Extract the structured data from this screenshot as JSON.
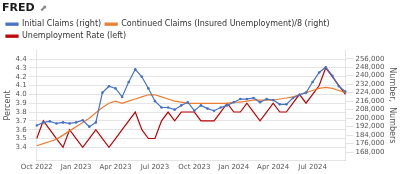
{
  "chart_data": {
    "type": "line",
    "title": "FRED",
    "annotations": [
      "⬈"
    ],
    "y_label": "Percent",
    "y2_label": "Number,  Numbers",
    "categories": [
      "Oct 2022",
      null,
      null,
      null,
      null,
      null,
      "Jan 2023",
      null,
      null,
      null,
      null,
      null,
      "Apr 2023",
      null,
      null,
      null,
      null,
      null,
      "Jul 2023",
      null,
      null,
      null,
      null,
      null,
      "Oct 2023",
      null,
      null,
      null,
      null,
      null,
      "Jan 2024",
      null,
      null,
      null,
      null,
      null,
      "Apr 2024",
      null,
      null,
      null,
      null,
      null,
      "Jul 2024",
      null,
      null,
      null,
      null,
      null
    ],
    "series": [
      {
        "name": "Initial Claims (right)",
        "color": "#4472c4",
        "axis": "y2",
        "marker": "circle",
        "values": [
          193000,
          196000,
          197000,
          195000,
          196000,
          195000,
          196000,
          198000,
          192000,
          196000,
          224000,
          230000,
          228000,
          220000,
          234000,
          246000,
          239000,
          228000,
          216000,
          210000,
          210000,
          208000,
          212000,
          215000,
          207000,
          212000,
          209000,
          207000,
          210000,
          212000,
          215000,
          218000,
          218000,
          219000,
          215000,
          218000,
          217000,
          213000,
          213000,
          219000,
          222000,
          224000,
          234000,
          243000,
          248000,
          240000,
          230000,
          225000
        ]
      },
      {
        "name": "Continued Claims (Insured Unemployment)/8 (right)",
        "color": "#ed7d31",
        "axis": "y2",
        "values": [
          174000,
          176000,
          178000,
          180000,
          184000,
          188000,
          192000,
          196000,
          200000,
          205000,
          210000,
          214000,
          216000,
          214000,
          216000,
          218000,
          220000,
          222000,
          222000,
          220000,
          218000,
          216000,
          215000,
          214000,
          214000,
          214000,
          214000,
          214000,
          214000,
          214000,
          215000,
          215000,
          216000,
          217000,
          217000,
          217000,
          217000,
          218000,
          219000,
          220000,
          222000,
          224000,
          226000,
          228000,
          229000,
          228000,
          226000,
          224000
        ]
      },
      {
        "name": "Unemployment Rate (left)",
        "color": "#be0000",
        "axis": "y",
        "values": [
          3.5,
          3.7,
          3.6,
          3.5,
          3.4,
          3.6,
          3.5,
          3.4,
          3.5,
          3.6,
          3.5,
          3.4,
          3.5,
          3.6,
          3.7,
          3.8,
          3.6,
          3.5,
          3.5,
          3.7,
          3.8,
          3.7,
          3.8,
          3.8,
          3.8,
          3.7,
          3.7,
          3.7,
          3.8,
          3.9,
          3.8,
          3.8,
          3.9,
          3.8,
          3.7,
          3.8,
          3.9,
          3.8,
          3.8,
          3.9,
          4.0,
          3.9,
          4.0,
          4.1,
          4.3,
          4.2,
          4.1,
          4.0
        ]
      }
    ],
    "ylim": [
      3.25,
      4.5
    ],
    "yticks": [
      3.4,
      3.5,
      3.6,
      3.7,
      3.8,
      3.9,
      {
        "value": 4.0,
        "label": "4.0"
      },
      4.1,
      4.2,
      4.3,
      4.4
    ],
    "y2lim": [
      160000,
      264000
    ],
    "y2ticks": [
      {
        "value": 168000,
        "label": "168,000"
      },
      {
        "value": 176000,
        "label": "176,000"
      },
      {
        "value": 184000,
        "label": "184,000"
      },
      {
        "value": 192000,
        "label": "192,000"
      },
      {
        "value": 200000,
        "label": "200,000"
      },
      {
        "value": 208000,
        "label": "208,000"
      },
      {
        "value": 216000,
        "label": "216,000"
      },
      {
        "value": 224000,
        "label": "224,000"
      },
      {
        "value": 232000,
        "label": "232,000"
      },
      {
        "value": 240000,
        "label": "240,000"
      },
      {
        "value": 248000,
        "label": "248,000"
      },
      {
        "value": 256000,
        "label": "256,000"
      }
    ],
    "grid": true,
    "legend": "upper left"
  }
}
